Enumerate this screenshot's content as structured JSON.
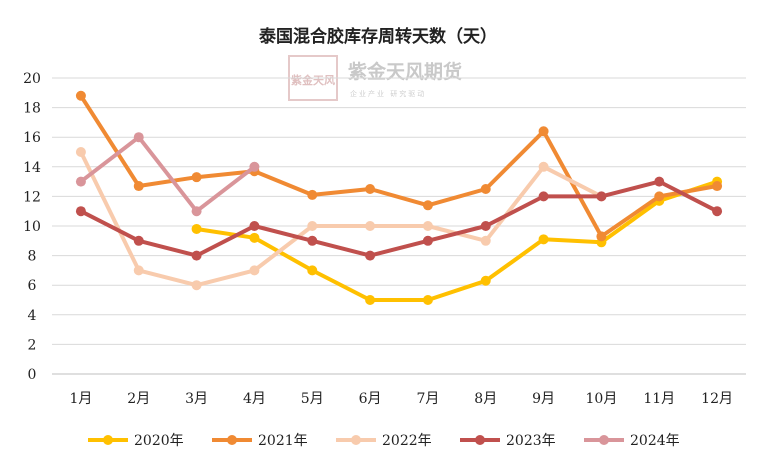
{
  "chart_data": {
    "type": "line",
    "title": "泰国混合胶库存周转天数（天）",
    "categories": [
      "1月",
      "2月",
      "3月",
      "4月",
      "5月",
      "6月",
      "7月",
      "8月",
      "9月",
      "10月",
      "11月",
      "12月"
    ],
    "ylim": [
      0,
      20
    ],
    "yticks": [
      0,
      2,
      4,
      6,
      8,
      10,
      12,
      14,
      16,
      18,
      20
    ],
    "grid": true,
    "legend": "bottom",
    "series": [
      {
        "name": "2020年",
        "color": "#FFC000",
        "values": [
          null,
          null,
          9.8,
          9.2,
          7,
          5,
          5,
          6.3,
          9.1,
          8.9,
          11.7,
          13
        ]
      },
      {
        "name": "2021年",
        "color": "#F08A33",
        "values": [
          18.8,
          12.7,
          13.3,
          13.7,
          12.1,
          12.5,
          11.4,
          12.5,
          16.4,
          9.3,
          12,
          12.7
        ]
      },
      {
        "name": "2022年",
        "color": "#F8CBAD",
        "values": [
          15,
          7,
          6,
          7,
          10,
          10,
          10,
          9,
          14,
          12,
          null,
          null
        ]
      },
      {
        "name": "2023年",
        "color": "#C0504D",
        "values": [
          11,
          9,
          8,
          10,
          9,
          8,
          9,
          10,
          12,
          12,
          13,
          11
        ]
      },
      {
        "name": "2024年",
        "color": "#D9959A",
        "values": [
          13,
          16,
          11,
          14,
          null,
          null,
          null,
          null,
          null,
          null,
          null,
          null
        ]
      }
    ]
  },
  "watermark": {
    "seal": "紫金天风",
    "name": "紫金天风期货",
    "tagline": "企业产业 研究驱动"
  }
}
